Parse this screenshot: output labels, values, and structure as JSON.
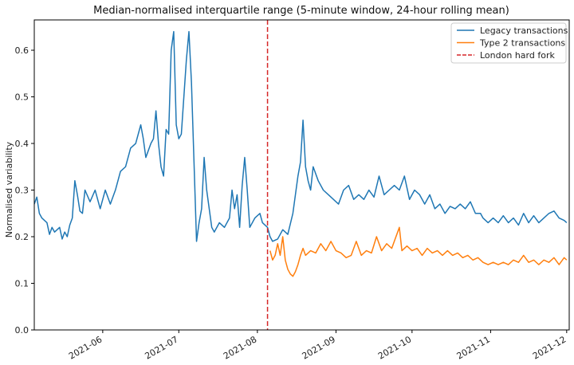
{
  "chart_data": {
    "type": "line",
    "title": "Median-normalised interquartile range (5-minute window, 24-hour rolling mean)",
    "xlabel": "",
    "ylabel": "Normalised variability",
    "x_is_date": true,
    "xlim": [
      "2021-05-05",
      "2021-12-02"
    ],
    "ylim": [
      0.0,
      0.665
    ],
    "yticks": [
      0.0,
      0.1,
      0.2,
      0.3,
      0.4,
      0.5,
      0.6
    ],
    "ytick_labels": [
      "0.0",
      "0.1",
      "0.2",
      "0.3",
      "0.4",
      "0.5",
      "0.6"
    ],
    "xticks": [
      "2021-06-01",
      "2021-07-01",
      "2021-08-01",
      "2021-09-01",
      "2021-10-01",
      "2021-11-01",
      "2021-12-01"
    ],
    "xtick_labels": [
      "2021-06",
      "2021-07",
      "2021-08",
      "2021-09",
      "2021-10",
      "2021-11",
      "2021-12"
    ],
    "grid": false,
    "legend_position": "top-right",
    "colors": {
      "legacy": "#1f77b4",
      "type2": "#ff7f0e",
      "fork": "#d62728"
    },
    "series": [
      {
        "name": "Legacy transactions",
        "color": "#1f77b4",
        "points": [
          [
            "2021-05-05",
            0.27
          ],
          [
            "2021-05-06",
            0.285
          ],
          [
            "2021-05-07",
            0.25
          ],
          [
            "2021-05-08",
            0.24
          ],
          [
            "2021-05-10",
            0.23
          ],
          [
            "2021-05-11",
            0.205
          ],
          [
            "2021-05-12",
            0.22
          ],
          [
            "2021-05-13",
            0.21
          ],
          [
            "2021-05-15",
            0.22
          ],
          [
            "2021-05-16",
            0.195
          ],
          [
            "2021-05-17",
            0.21
          ],
          [
            "2021-05-18",
            0.2
          ],
          [
            "2021-05-19",
            0.225
          ],
          [
            "2021-05-20",
            0.24
          ],
          [
            "2021-05-21",
            0.32
          ],
          [
            "2021-05-22",
            0.29
          ],
          [
            "2021-05-23",
            0.255
          ],
          [
            "2021-05-24",
            0.25
          ],
          [
            "2021-05-25",
            0.3
          ],
          [
            "2021-05-27",
            0.275
          ],
          [
            "2021-05-29",
            0.3
          ],
          [
            "2021-05-31",
            0.26
          ],
          [
            "2021-06-02",
            0.3
          ],
          [
            "2021-06-04",
            0.27
          ],
          [
            "2021-06-06",
            0.3
          ],
          [
            "2021-06-08",
            0.34
          ],
          [
            "2021-06-10",
            0.35
          ],
          [
            "2021-06-12",
            0.39
          ],
          [
            "2021-06-14",
            0.4
          ],
          [
            "2021-06-16",
            0.44
          ],
          [
            "2021-06-17",
            0.41
          ],
          [
            "2021-06-18",
            0.37
          ],
          [
            "2021-06-20",
            0.4
          ],
          [
            "2021-06-21",
            0.41
          ],
          [
            "2021-06-22",
            0.47
          ],
          [
            "2021-06-23",
            0.4
          ],
          [
            "2021-06-24",
            0.35
          ],
          [
            "2021-06-25",
            0.33
          ],
          [
            "2021-06-26",
            0.43
          ],
          [
            "2021-06-27",
            0.42
          ],
          [
            "2021-06-28",
            0.6
          ],
          [
            "2021-06-29",
            0.64
          ],
          [
            "2021-06-30",
            0.44
          ],
          [
            "2021-07-01",
            0.41
          ],
          [
            "2021-07-02",
            0.42
          ],
          [
            "2021-07-03",
            0.5
          ],
          [
            "2021-07-04",
            0.58
          ],
          [
            "2021-07-05",
            0.64
          ],
          [
            "2021-07-06",
            0.53
          ],
          [
            "2021-07-07",
            0.36
          ],
          [
            "2021-07-08",
            0.19
          ],
          [
            "2021-07-09",
            0.23
          ],
          [
            "2021-07-10",
            0.26
          ],
          [
            "2021-07-11",
            0.37
          ],
          [
            "2021-07-12",
            0.3
          ],
          [
            "2021-07-13",
            0.26
          ],
          [
            "2021-07-14",
            0.22
          ],
          [
            "2021-07-15",
            0.21
          ],
          [
            "2021-07-17",
            0.23
          ],
          [
            "2021-07-19",
            0.22
          ],
          [
            "2021-07-21",
            0.24
          ],
          [
            "2021-07-22",
            0.3
          ],
          [
            "2021-07-23",
            0.26
          ],
          [
            "2021-07-24",
            0.29
          ],
          [
            "2021-07-25",
            0.22
          ],
          [
            "2021-07-26",
            0.31
          ],
          [
            "2021-07-27",
            0.37
          ],
          [
            "2021-07-28",
            0.3
          ],
          [
            "2021-07-29",
            0.22
          ],
          [
            "2021-07-31",
            0.24
          ],
          [
            "2021-08-02",
            0.25
          ],
          [
            "2021-08-03",
            0.23
          ],
          [
            "2021-08-05",
            0.22
          ],
          [
            "2021-08-06",
            0.2
          ],
          [
            "2021-08-07",
            0.19
          ],
          [
            "2021-08-09",
            0.195
          ],
          [
            "2021-08-11",
            0.215
          ],
          [
            "2021-08-13",
            0.205
          ],
          [
            "2021-08-15",
            0.25
          ],
          [
            "2021-08-17",
            0.33
          ],
          [
            "2021-08-18",
            0.36
          ],
          [
            "2021-08-19",
            0.45
          ],
          [
            "2021-08-20",
            0.35
          ],
          [
            "2021-08-21",
            0.32
          ],
          [
            "2021-08-22",
            0.3
          ],
          [
            "2021-08-23",
            0.35
          ],
          [
            "2021-08-25",
            0.32
          ],
          [
            "2021-08-27",
            0.3
          ],
          [
            "2021-08-29",
            0.29
          ],
          [
            "2021-08-31",
            0.28
          ],
          [
            "2021-09-02",
            0.27
          ],
          [
            "2021-09-04",
            0.3
          ],
          [
            "2021-09-06",
            0.31
          ],
          [
            "2021-09-08",
            0.28
          ],
          [
            "2021-09-10",
            0.29
          ],
          [
            "2021-09-12",
            0.28
          ],
          [
            "2021-09-14",
            0.3
          ],
          [
            "2021-09-16",
            0.285
          ],
          [
            "2021-09-18",
            0.33
          ],
          [
            "2021-09-20",
            0.29
          ],
          [
            "2021-09-22",
            0.3
          ],
          [
            "2021-09-24",
            0.31
          ],
          [
            "2021-09-26",
            0.3
          ],
          [
            "2021-09-28",
            0.33
          ],
          [
            "2021-09-30",
            0.28
          ],
          [
            "2021-10-02",
            0.3
          ],
          [
            "2021-10-04",
            0.29
          ],
          [
            "2021-10-06",
            0.27
          ],
          [
            "2021-10-08",
            0.29
          ],
          [
            "2021-10-10",
            0.26
          ],
          [
            "2021-10-12",
            0.27
          ],
          [
            "2021-10-14",
            0.25
          ],
          [
            "2021-10-16",
            0.265
          ],
          [
            "2021-10-18",
            0.26
          ],
          [
            "2021-10-20",
            0.27
          ],
          [
            "2021-10-22",
            0.26
          ],
          [
            "2021-10-24",
            0.275
          ],
          [
            "2021-10-26",
            0.25
          ],
          [
            "2021-10-28",
            0.25
          ],
          [
            "2021-10-29",
            0.24
          ],
          [
            "2021-10-31",
            0.23
          ],
          [
            "2021-11-02",
            0.24
          ],
          [
            "2021-11-04",
            0.23
          ],
          [
            "2021-11-06",
            0.245
          ],
          [
            "2021-11-08",
            0.23
          ],
          [
            "2021-11-10",
            0.24
          ],
          [
            "2021-11-12",
            0.225
          ],
          [
            "2021-11-14",
            0.25
          ],
          [
            "2021-11-16",
            0.23
          ],
          [
            "2021-11-18",
            0.245
          ],
          [
            "2021-11-20",
            0.23
          ],
          [
            "2021-11-22",
            0.24
          ],
          [
            "2021-11-24",
            0.25
          ],
          [
            "2021-11-26",
            0.255
          ],
          [
            "2021-11-28",
            0.24
          ],
          [
            "2021-11-30",
            0.235
          ],
          [
            "2021-12-01",
            0.23
          ]
        ]
      },
      {
        "name": "Type 2 transactions",
        "color": "#ff7f0e",
        "points": [
          [
            "2021-08-06",
            0.17
          ],
          [
            "2021-08-07",
            0.15
          ],
          [
            "2021-08-08",
            0.16
          ],
          [
            "2021-08-09",
            0.185
          ],
          [
            "2021-08-10",
            0.16
          ],
          [
            "2021-08-11",
            0.2
          ],
          [
            "2021-08-12",
            0.15
          ],
          [
            "2021-08-13",
            0.13
          ],
          [
            "2021-08-14",
            0.12
          ],
          [
            "2021-08-15",
            0.115
          ],
          [
            "2021-08-16",
            0.125
          ],
          [
            "2021-08-17",
            0.14
          ],
          [
            "2021-08-18",
            0.16
          ],
          [
            "2021-08-19",
            0.175
          ],
          [
            "2021-08-20",
            0.16
          ],
          [
            "2021-08-22",
            0.17
          ],
          [
            "2021-08-24",
            0.165
          ],
          [
            "2021-08-26",
            0.185
          ],
          [
            "2021-08-28",
            0.17
          ],
          [
            "2021-08-30",
            0.19
          ],
          [
            "2021-09-01",
            0.17
          ],
          [
            "2021-09-03",
            0.165
          ],
          [
            "2021-09-05",
            0.155
          ],
          [
            "2021-09-07",
            0.16
          ],
          [
            "2021-09-09",
            0.19
          ],
          [
            "2021-09-11",
            0.16
          ],
          [
            "2021-09-13",
            0.17
          ],
          [
            "2021-09-15",
            0.165
          ],
          [
            "2021-09-17",
            0.2
          ],
          [
            "2021-09-19",
            0.17
          ],
          [
            "2021-09-21",
            0.185
          ],
          [
            "2021-09-23",
            0.175
          ],
          [
            "2021-09-26",
            0.22
          ],
          [
            "2021-09-27",
            0.17
          ],
          [
            "2021-09-29",
            0.18
          ],
          [
            "2021-10-01",
            0.17
          ],
          [
            "2021-10-03",
            0.175
          ],
          [
            "2021-10-05",
            0.16
          ],
          [
            "2021-10-07",
            0.175
          ],
          [
            "2021-10-09",
            0.165
          ],
          [
            "2021-10-11",
            0.17
          ],
          [
            "2021-10-13",
            0.16
          ],
          [
            "2021-10-15",
            0.17
          ],
          [
            "2021-10-17",
            0.16
          ],
          [
            "2021-10-19",
            0.165
          ],
          [
            "2021-10-21",
            0.155
          ],
          [
            "2021-10-23",
            0.16
          ],
          [
            "2021-10-25",
            0.15
          ],
          [
            "2021-10-27",
            0.155
          ],
          [
            "2021-10-29",
            0.145
          ],
          [
            "2021-10-31",
            0.14
          ],
          [
            "2021-11-02",
            0.145
          ],
          [
            "2021-11-04",
            0.14
          ],
          [
            "2021-11-06",
            0.145
          ],
          [
            "2021-11-08",
            0.14
          ],
          [
            "2021-11-10",
            0.15
          ],
          [
            "2021-11-12",
            0.145
          ],
          [
            "2021-11-14",
            0.16
          ],
          [
            "2021-11-16",
            0.145
          ],
          [
            "2021-11-18",
            0.15
          ],
          [
            "2021-11-20",
            0.14
          ],
          [
            "2021-11-22",
            0.15
          ],
          [
            "2021-11-24",
            0.145
          ],
          [
            "2021-11-26",
            0.155
          ],
          [
            "2021-11-28",
            0.14
          ],
          [
            "2021-11-30",
            0.155
          ],
          [
            "2021-12-01",
            0.15
          ]
        ]
      }
    ],
    "vline": {
      "label": "London hard fork",
      "x": "2021-08-05",
      "color": "#d62728",
      "style": "dashed"
    }
  }
}
